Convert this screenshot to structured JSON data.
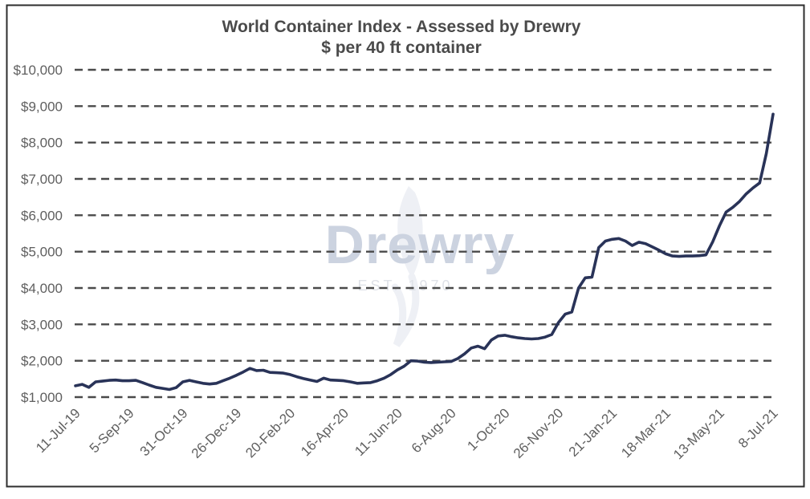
{
  "watermark": {
    "text": "Drewry",
    "subtext": "EST. 1970"
  },
  "colors": {
    "background": "#ffffff",
    "frame": "#2e2e2e",
    "title": "#4a4a4a",
    "axis_label": "#5f5f5f",
    "grid": "#4a4a4a",
    "line": "#293358",
    "watermark_text": "#ccd3e0",
    "watermark_sub": "#dfe2e8",
    "watermark_flame": "#eef0f5"
  },
  "chart_data": {
    "type": "line",
    "title": "World Container Index - Assessed by Drewry",
    "subtitle": "$ per 40 ft container",
    "ylim": [
      1000,
      10000
    ],
    "y_ticks": [
      1000,
      2000,
      3000,
      4000,
      5000,
      6000,
      7000,
      8000,
      9000,
      10000
    ],
    "y_tick_labels": [
      "$1,000",
      "$2,000",
      "$3,000",
      "$4,000",
      "$5,000",
      "$6,000",
      "$7,000",
      "$8,000",
      "$9,000",
      "$10,000"
    ],
    "x_tick_labels": [
      "11-Jul-19",
      "5-Sep-19",
      "31-Oct-19",
      "26-Dec-19",
      "20-Feb-20",
      "16-Apr-20",
      "11-Jun-20",
      "6-Aug-20",
      "1-Oct-20",
      "26-Nov-20",
      "21-Jan-21",
      "18-Mar-21",
      "13-May-21",
      "8-Jul-21"
    ],
    "grid": {
      "horizontal": true,
      "vertical": false,
      "style": "dashed"
    },
    "legend": "none",
    "series": [
      {
        "name": "World Container Index ($ per 40 ft container)",
        "color": "#293358",
        "dates": [
          "11-Jul-19",
          "18-Jul-19",
          "25-Jul-19",
          "1-Aug-19",
          "8-Aug-19",
          "15-Aug-19",
          "22-Aug-19",
          "29-Aug-19",
          "5-Sep-19",
          "12-Sep-19",
          "19-Sep-19",
          "26-Sep-19",
          "3-Oct-19",
          "10-Oct-19",
          "17-Oct-19",
          "24-Oct-19",
          "31-Oct-19",
          "7-Nov-19",
          "14-Nov-19",
          "21-Nov-19",
          "28-Nov-19",
          "5-Dec-19",
          "12-Dec-19",
          "19-Dec-19",
          "26-Dec-19",
          "2-Jan-20",
          "9-Jan-20",
          "16-Jan-20",
          "23-Jan-20",
          "30-Jan-20",
          "6-Feb-20",
          "13-Feb-20",
          "20-Feb-20",
          "27-Feb-20",
          "5-Mar-20",
          "12-Mar-20",
          "19-Mar-20",
          "26-Mar-20",
          "2-Apr-20",
          "9-Apr-20",
          "16-Apr-20",
          "23-Apr-20",
          "30-Apr-20",
          "7-May-20",
          "14-May-20",
          "21-May-20",
          "28-May-20",
          "4-Jun-20",
          "11-Jun-20",
          "18-Jun-20",
          "25-Jun-20",
          "2-Jul-20",
          "9-Jul-20",
          "16-Jul-20",
          "23-Jul-20",
          "30-Jul-20",
          "6-Aug-20",
          "13-Aug-20",
          "20-Aug-20",
          "27-Aug-20",
          "3-Sep-20",
          "10-Sep-20",
          "17-Sep-20",
          "24-Sep-20",
          "1-Oct-20",
          "8-Oct-20",
          "15-Oct-20",
          "22-Oct-20",
          "29-Oct-20",
          "5-Nov-20",
          "12-Nov-20",
          "19-Nov-20",
          "26-Nov-20",
          "3-Dec-20",
          "10-Dec-20",
          "17-Dec-20",
          "24-Dec-20",
          "31-Dec-20",
          "7-Jan-21",
          "14-Jan-21",
          "21-Jan-21",
          "28-Jan-21",
          "4-Feb-21",
          "11-Feb-21",
          "18-Feb-21",
          "25-Feb-21",
          "4-Mar-21",
          "11-Mar-21",
          "18-Mar-21",
          "25-Mar-21",
          "1-Apr-21",
          "8-Apr-21",
          "15-Apr-21",
          "22-Apr-21",
          "29-Apr-21",
          "6-May-21",
          "13-May-21",
          "20-May-21",
          "27-May-21",
          "3-Jun-21",
          "10-Jun-21",
          "17-Jun-21",
          "24-Jun-21",
          "1-Jul-21",
          "8-Jul-21"
        ],
        "values": [
          1310,
          1350,
          1270,
          1420,
          1440,
          1460,
          1470,
          1450,
          1450,
          1460,
          1400,
          1330,
          1270,
          1240,
          1210,
          1260,
          1420,
          1460,
          1420,
          1380,
          1360,
          1380,
          1450,
          1520,
          1600,
          1690,
          1790,
          1730,
          1740,
          1680,
          1670,
          1660,
          1620,
          1560,
          1510,
          1470,
          1430,
          1520,
          1470,
          1460,
          1450,
          1420,
          1380,
          1390,
          1400,
          1450,
          1520,
          1620,
          1750,
          1850,
          2000,
          1990,
          1960,
          1950,
          1960,
          1970,
          1980,
          2060,
          2190,
          2350,
          2400,
          2330,
          2570,
          2680,
          2700,
          2660,
          2630,
          2610,
          2600,
          2610,
          2650,
          2720,
          3050,
          3280,
          3340,
          4000,
          4280,
          4300,
          5110,
          5290,
          5340,
          5360,
          5290,
          5170,
          5260,
          5220,
          5130,
          5040,
          4940,
          4880,
          4870,
          4880,
          4880,
          4890,
          4910,
          5270,
          5710,
          6090,
          6220,
          6380,
          6590,
          6750,
          6890,
          7700,
          8780
        ]
      }
    ]
  }
}
